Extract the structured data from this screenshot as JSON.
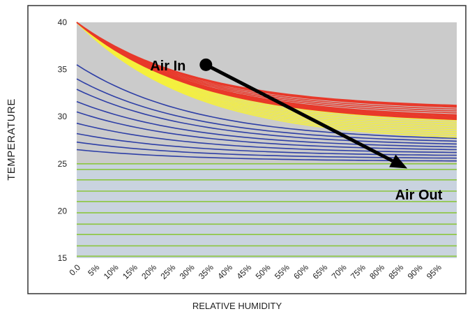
{
  "chart_data": {
    "type": "line",
    "title": "",
    "xlabel": "RELATIVE HUMIDITY",
    "ylabel": "TEMPERATURE",
    "xlim": [
      0,
      100
    ],
    "ylim": [
      15,
      40
    ],
    "x_ticks": [
      "0.0",
      "5%",
      "10%",
      "15%",
      "20%",
      "25%",
      "30%",
      "35%",
      "40%",
      "45%",
      "50%",
      "55%",
      "60%",
      "65%",
      "70%",
      "75%",
      "80%",
      "85%",
      "90%",
      "95%"
    ],
    "y_ticks": [
      15,
      20,
      25,
      30,
      35,
      40
    ],
    "bands": [
      {
        "color": "#8cc63f",
        "line_temps_at_full_humidity": [
          15.2,
          16.3,
          17.5,
          18.6,
          19.8,
          21.0,
          22.1,
          23.3,
          24.4,
          25.0
        ],
        "line_temps_at_zero_humidity": [
          15.2,
          16.3,
          17.5,
          18.6,
          19.8,
          21.0,
          22.1,
          23.3,
          24.4,
          25.0
        ]
      },
      {
        "color": "#2e3fa6",
        "line_temps_at_zero_humidity": [
          26.5,
          27.3,
          28.2,
          29.3,
          30.5,
          31.6,
          32.9,
          34.0,
          35.5
        ],
        "line_temps_at_full_humidity": [
          25.3,
          25.6,
          25.9,
          26.2,
          26.5,
          26.8,
          27.1,
          27.4,
          27.7
        ]
      },
      {
        "color": "#f5f03c",
        "line_temps_at_zero_humidity": [
          40,
          40,
          40,
          40,
          40,
          40,
          40,
          40,
          40,
          40
        ],
        "line_temps_at_full_humidity": [
          27.8,
          28.0,
          28.2,
          28.4,
          28.6,
          28.8,
          29.0,
          29.2,
          29.4,
          29.6
        ]
      },
      {
        "color": "#e8392a",
        "line_temps_at_zero_humidity": [
          40,
          40,
          40,
          40,
          40,
          40,
          40,
          40,
          40,
          40,
          40,
          40
        ],
        "line_temps_at_full_humidity": [
          29.7,
          29.8,
          29.9,
          30.0,
          30.1,
          30.2,
          30.4,
          30.6,
          30.8,
          31.0,
          31.1,
          31.2
        ]
      }
    ],
    "arrow": {
      "from": {
        "x": 34,
        "y": 35.5
      },
      "to": {
        "x": 87,
        "y": 24.5
      }
    },
    "annotations": [
      {
        "text": "Air In",
        "x": 24,
        "y": 34.9
      },
      {
        "text": "Air Out",
        "x": 90,
        "y": 21.2
      }
    ],
    "background_color": "#c9d3df",
    "overlay_color": "#cbcbcb"
  }
}
